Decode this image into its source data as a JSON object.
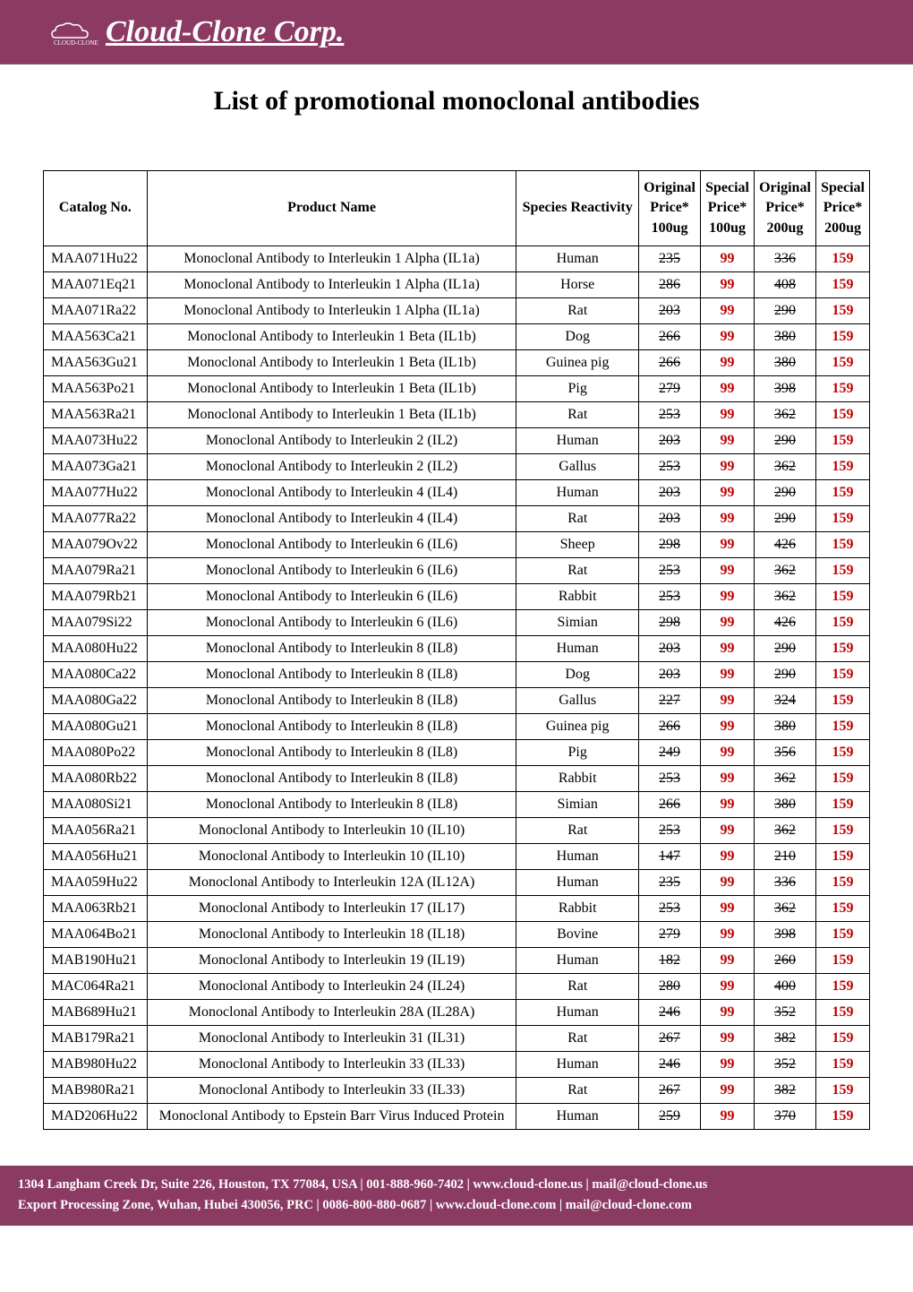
{
  "header": {
    "company_name": "Cloud-Clone Corp."
  },
  "title": "List of promotional monoclonal antibodies",
  "table": {
    "columns": [
      "Catalog No.",
      "Product Name",
      "Species Reactivity",
      "Original Price* 100ug",
      "Special Price* 100ug",
      "Original Price* 200ug",
      "Special Price* 200ug"
    ],
    "col_headers": {
      "catalog": "Catalog No.",
      "product": "Product Name",
      "species": "Species Reactivity",
      "orig100_l1": "Original",
      "orig100_l2": "Price*",
      "orig100_l3": "100ug",
      "spec100_l1": "Special",
      "spec100_l2": "Price*",
      "spec100_l3": "100ug",
      "orig200_l1": "Original",
      "orig200_l2": "Price*",
      "orig200_l3": "200ug",
      "spec200_l1": "Special",
      "spec200_l2": "Price*",
      "spec200_l3": "200ug"
    },
    "rows": [
      {
        "catalog": "MAA071Hu22",
        "name": "Monoclonal Antibody to Interleukin 1 Alpha (IL1a)",
        "species": "Human",
        "o100": "235",
        "s100": "99",
        "o200": "336",
        "s200": "159"
      },
      {
        "catalog": "MAA071Eq21",
        "name": "Monoclonal Antibody to Interleukin 1 Alpha (IL1a)",
        "species": "Horse",
        "o100": "286",
        "s100": "99",
        "o200": "408",
        "s200": "159"
      },
      {
        "catalog": "MAA071Ra22",
        "name": "Monoclonal Antibody to Interleukin 1 Alpha (IL1a)",
        "species": "Rat",
        "o100": "203",
        "s100": "99",
        "o200": "290",
        "s200": "159"
      },
      {
        "catalog": "MAA563Ca21",
        "name": "Monoclonal Antibody to Interleukin 1 Beta (IL1b)",
        "species": "Dog",
        "o100": "266",
        "s100": "99",
        "o200": "380",
        "s200": "159"
      },
      {
        "catalog": "MAA563Gu21",
        "name": "Monoclonal Antibody to Interleukin 1 Beta (IL1b)",
        "species": "Guinea pig",
        "o100": "266",
        "s100": "99",
        "o200": "380",
        "s200": "159"
      },
      {
        "catalog": "MAA563Po21",
        "name": "Monoclonal Antibody to Interleukin 1 Beta (IL1b)",
        "species": "Pig",
        "o100": "279",
        "s100": "99",
        "o200": "398",
        "s200": "159"
      },
      {
        "catalog": "MAA563Ra21",
        "name": "Monoclonal Antibody to Interleukin 1 Beta (IL1b)",
        "species": "Rat",
        "o100": "253",
        "s100": "99",
        "o200": "362",
        "s200": "159"
      },
      {
        "catalog": "MAA073Hu22",
        "name": "Monoclonal Antibody to Interleukin 2 (IL2)",
        "species": "Human",
        "o100": "203",
        "s100": "99",
        "o200": "290",
        "s200": "159"
      },
      {
        "catalog": "MAA073Ga21",
        "name": "Monoclonal Antibody to Interleukin 2 (IL2)",
        "species": "Gallus",
        "o100": "253",
        "s100": "99",
        "o200": "362",
        "s200": "159"
      },
      {
        "catalog": "MAA077Hu22",
        "name": "Monoclonal Antibody to Interleukin 4 (IL4)",
        "species": "Human",
        "o100": "203",
        "s100": "99",
        "o200": "290",
        "s200": "159"
      },
      {
        "catalog": "MAA077Ra22",
        "name": "Monoclonal Antibody to Interleukin 4 (IL4)",
        "species": "Rat",
        "o100": "203",
        "s100": "99",
        "o200": "290",
        "s200": "159"
      },
      {
        "catalog": "MAA079Ov22",
        "name": "Monoclonal Antibody to Interleukin 6 (IL6)",
        "species": "Sheep",
        "o100": "298",
        "s100": "99",
        "o200": "426",
        "s200": "159"
      },
      {
        "catalog": "MAA079Ra21",
        "name": "Monoclonal Antibody to Interleukin 6 (IL6)",
        "species": "Rat",
        "o100": "253",
        "s100": "99",
        "o200": "362",
        "s200": "159"
      },
      {
        "catalog": "MAA079Rb21",
        "name": "Monoclonal Antibody to Interleukin 6 (IL6)",
        "species": "Rabbit",
        "o100": "253",
        "s100": "99",
        "o200": "362",
        "s200": "159"
      },
      {
        "catalog": "MAA079Si22",
        "name": "Monoclonal Antibody to Interleukin 6 (IL6)",
        "species": "Simian",
        "o100": "298",
        "s100": "99",
        "o200": "426",
        "s200": "159"
      },
      {
        "catalog": "MAA080Hu22",
        "name": "Monoclonal Antibody to Interleukin 8 (IL8)",
        "species": "Human",
        "o100": "203",
        "s100": "99",
        "o200": "290",
        "s200": "159"
      },
      {
        "catalog": "MAA080Ca22",
        "name": "Monoclonal Antibody to Interleukin 8 (IL8)",
        "species": "Dog",
        "o100": "203",
        "s100": "99",
        "o200": "290",
        "s200": "159"
      },
      {
        "catalog": "MAA080Ga22",
        "name": "Monoclonal Antibody to Interleukin 8 (IL8)",
        "species": "Gallus",
        "o100": "227",
        "s100": "99",
        "o200": "324",
        "s200": "159"
      },
      {
        "catalog": "MAA080Gu21",
        "name": "Monoclonal Antibody to Interleukin 8 (IL8)",
        "species": "Guinea pig",
        "o100": "266",
        "s100": "99",
        "o200": "380",
        "s200": "159"
      },
      {
        "catalog": "MAA080Po22",
        "name": "Monoclonal Antibody to Interleukin 8 (IL8)",
        "species": "Pig",
        "o100": "249",
        "s100": "99",
        "o200": "356",
        "s200": "159"
      },
      {
        "catalog": "MAA080Rb22",
        "name": "Monoclonal Antibody to Interleukin 8 (IL8)",
        "species": "Rabbit",
        "o100": "253",
        "s100": "99",
        "o200": "362",
        "s200": "159"
      },
      {
        "catalog": "MAA080Si21",
        "name": "Monoclonal Antibody to Interleukin 8 (IL8)",
        "species": "Simian",
        "o100": "266",
        "s100": "99",
        "o200": "380",
        "s200": "159"
      },
      {
        "catalog": "MAA056Ra21",
        "name": "Monoclonal Antibody to Interleukin 10 (IL10)",
        "species": "Rat",
        "o100": "253",
        "s100": "99",
        "o200": "362",
        "s200": "159"
      },
      {
        "catalog": "MAA056Hu21",
        "name": "Monoclonal Antibody to Interleukin 10 (IL10)",
        "species": "Human",
        "o100": "147",
        "s100": "99",
        "o200": "210",
        "s200": "159"
      },
      {
        "catalog": "MAA059Hu22",
        "name": "Monoclonal Antibody to Interleukin 12A (IL12A)",
        "species": "Human",
        "o100": "235",
        "s100": "99",
        "o200": "336",
        "s200": "159"
      },
      {
        "catalog": "MAA063Rb21",
        "name": "Monoclonal Antibody to Interleukin 17 (IL17)",
        "species": "Rabbit",
        "o100": "253",
        "s100": "99",
        "o200": "362",
        "s200": "159"
      },
      {
        "catalog": "MAA064Bo21",
        "name": "Monoclonal Antibody to Interleukin 18 (IL18)",
        "species": "Bovine",
        "o100": "279",
        "s100": "99",
        "o200": "398",
        "s200": "159"
      },
      {
        "catalog": "MAB190Hu21",
        "name": "Monoclonal Antibody to Interleukin 19 (IL19)",
        "species": "Human",
        "o100": "182",
        "s100": "99",
        "o200": "260",
        "s200": "159"
      },
      {
        "catalog": "MAC064Ra21",
        "name": "Monoclonal Antibody to Interleukin 24 (IL24)",
        "species": "Rat",
        "o100": "280",
        "s100": "99",
        "o200": "400",
        "s200": "159"
      },
      {
        "catalog": "MAB689Hu21",
        "name": "Monoclonal Antibody to Interleukin 28A (IL28A)",
        "species": "Human",
        "o100": "246",
        "s100": "99",
        "o200": "352",
        "s200": "159"
      },
      {
        "catalog": "MAB179Ra21",
        "name": "Monoclonal Antibody to Interleukin 31 (IL31)",
        "species": "Rat",
        "o100": "267",
        "s100": "99",
        "o200": "382",
        "s200": "159"
      },
      {
        "catalog": "MAB980Hu22",
        "name": "Monoclonal Antibody to Interleukin 33 (IL33)",
        "species": "Human",
        "o100": "246",
        "s100": "99",
        "o200": "352",
        "s200": "159"
      },
      {
        "catalog": "MAB980Ra21",
        "name": "Monoclonal Antibody to Interleukin 33 (IL33)",
        "species": "Rat",
        "o100": "267",
        "s100": "99",
        "o200": "382",
        "s200": "159"
      },
      {
        "catalog": "MAD206Hu22",
        "name": "Monoclonal Antibody to Epstein Barr Virus Induced Protein",
        "species": "Human",
        "o100": "259",
        "s100": "99",
        "o200": "370",
        "s200": "159"
      }
    ]
  },
  "footer": {
    "line1": "1304 Langham Creek Dr, Suite 226, Houston, TX 77084, USA | 001-888-960-7402 | www.cloud-clone.us | mail@cloud-clone.us",
    "line2": "Export Processing Zone, Wuhan, Hubei 430056, PRC | 0086-800-880-0687 | www.cloud-clone.com | mail@cloud-clone.com"
  },
  "style": {
    "header_bg": "#8b3a62",
    "special_color": "#c00000",
    "border_color": "#000000",
    "title_fontsize": 30,
    "body_fontsize": 16
  }
}
